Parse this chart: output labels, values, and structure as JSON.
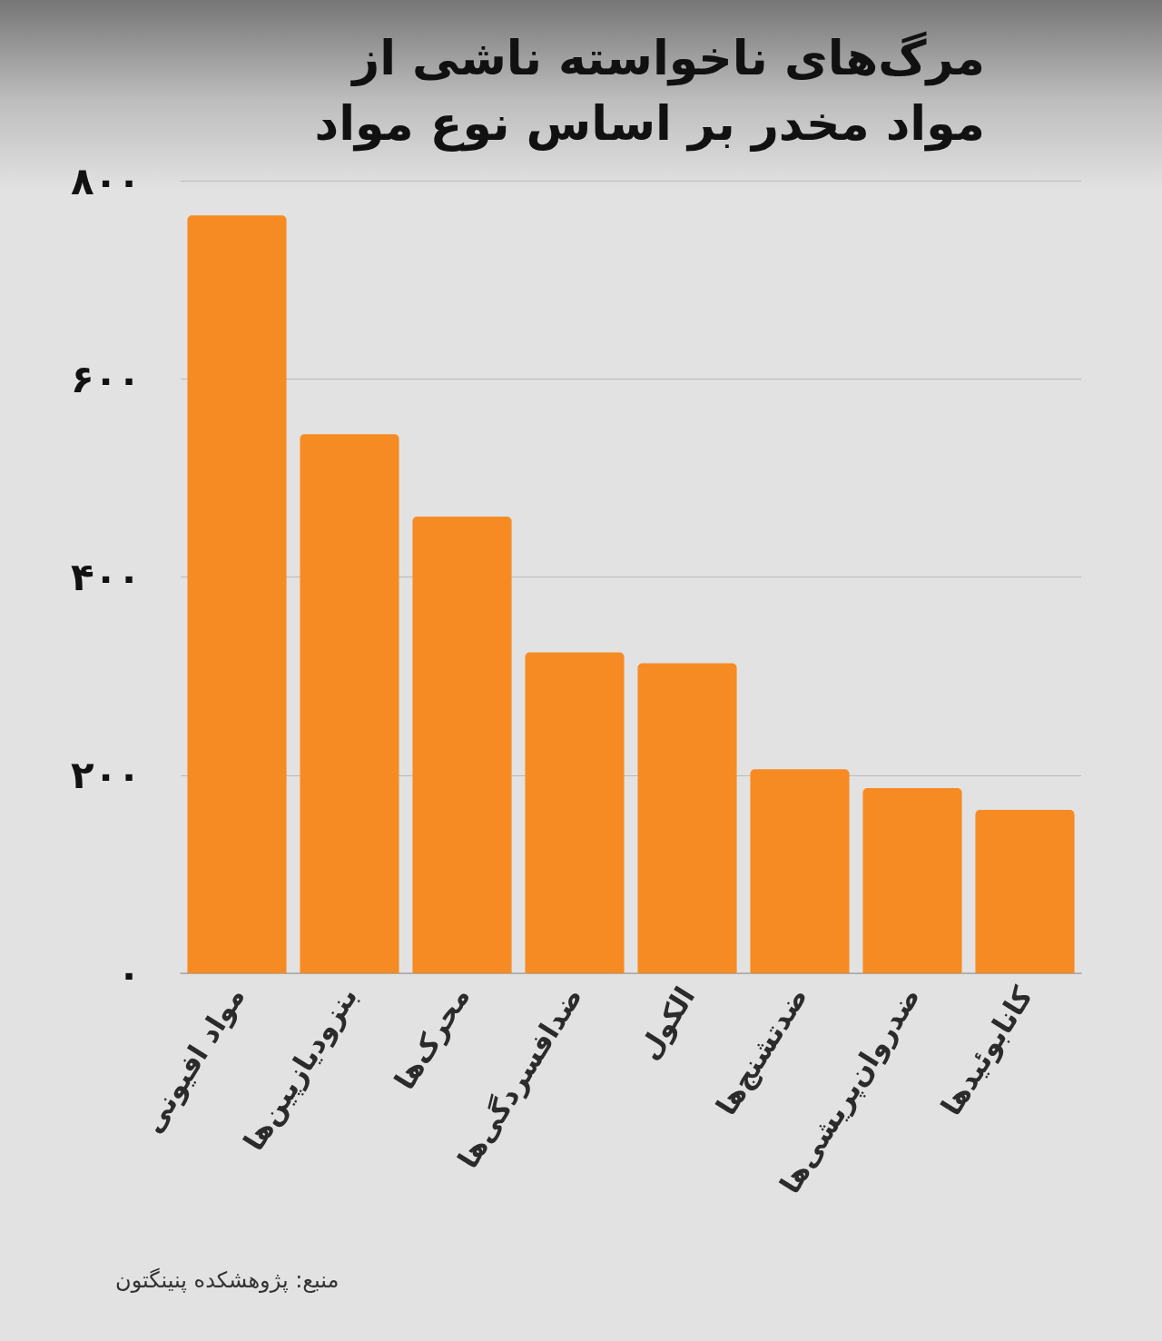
{
  "chart_data": {
    "type": "bar",
    "title": "مرگ‌های ناخواسته ناشی از مواد مخدر بر اساس نوع مواد",
    "categories": [
      "مواد افیونی",
      "بنزودیازپین‌ها",
      "محرک‌ها",
      "ضدافسردگی‌ها",
      "الکول",
      "ضدتشنج‌ها",
      "ضدروان‌پریشی‌ها",
      "کانابوئیدها"
    ],
    "values": [
      765,
      544,
      461,
      324,
      313,
      206,
      187,
      165
    ],
    "color": "#f68b24",
    "ylim": [
      0,
      800
    ],
    "yticks": [
      {
        "value": 0,
        "label": "۰"
      },
      {
        "value": 200,
        "label": "۲۰۰"
      },
      {
        "value": 400,
        "label": "۴۰۰"
      },
      {
        "value": 600,
        "label": "۶۰۰"
      },
      {
        "value": 800,
        "label": "۸۰۰"
      }
    ],
    "grid": "y",
    "annotations": [
      "منبع: پژوهشکده پنینگتون"
    ]
  }
}
